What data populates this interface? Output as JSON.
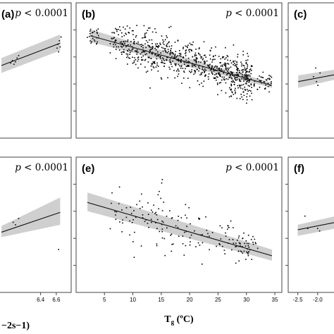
{
  "chart_data": [
    {
      "panel": "(a)",
      "type": "scatter",
      "p_text": "p < 0.0001",
      "x_range": [
        5.9,
        6.7
      ],
      "y_range": [
        0,
        1
      ],
      "points": [
        [
          6.02,
          0.56
        ],
        [
          6.04,
          0.58
        ],
        [
          6.06,
          0.55
        ],
        [
          6.08,
          0.57
        ],
        [
          6.1,
          0.6
        ],
        [
          6.12,
          0.62
        ],
        [
          6.62,
          0.71
        ],
        [
          6.63,
          0.65
        ],
        [
          6.64,
          0.74
        ],
        [
          6.65,
          0.69
        ],
        [
          6.66,
          0.77
        ],
        [
          6.61,
          0.68
        ]
      ],
      "fit": [
        [
          5.9,
          0.54
        ],
        [
          6.65,
          0.72
        ]
      ],
      "band": [
        [
          5.9,
          0.48
        ],
        [
          6.65,
          0.66
        ],
        [
          6.65,
          0.79
        ],
        [
          5.9,
          0.6
        ]
      ]
    },
    {
      "panel": "(b)",
      "type": "scatter",
      "p_text": "p < 0.0001",
      "x_range": [
        1,
        35
      ],
      "y_range": [
        0,
        1
      ],
      "fit": [
        [
          2.5,
          0.78
        ],
        [
          34.5,
          0.38
        ]
      ],
      "band": [
        [
          2.5,
          0.73
        ],
        [
          34.5,
          0.36
        ],
        [
          34.5,
          0.4
        ],
        [
          2.5,
          0.83
        ]
      ],
      "clusters": [
        {
          "x_min": 2,
          "x_max": 4,
          "y_center": 0.78,
          "y_spread": 0.07,
          "n": 25
        },
        {
          "x_min": 6,
          "x_max": 9,
          "y_center": 0.74,
          "y_spread": 0.1,
          "n": 60
        },
        {
          "x_min": 9,
          "x_max": 13,
          "y_center": 0.68,
          "y_spread": 0.14,
          "n": 110
        },
        {
          "x_min": 13,
          "x_max": 17,
          "y_center": 0.63,
          "y_spread": 0.13,
          "n": 130
        },
        {
          "x_min": 17,
          "x_max": 22,
          "y_center": 0.57,
          "y_spread": 0.12,
          "n": 150
        },
        {
          "x_min": 22,
          "x_max": 27,
          "y_center": 0.51,
          "y_spread": 0.12,
          "n": 160
        },
        {
          "x_min": 27,
          "x_max": 31,
          "y_center": 0.44,
          "y_spread": 0.14,
          "n": 200
        },
        {
          "x_min": 31,
          "x_max": 34.5,
          "y_center": 0.41,
          "y_spread": 0.08,
          "n": 40
        }
      ]
    },
    {
      "panel": "(c)",
      "type": "scatter",
      "p_text": "",
      "x_range": [
        0,
        1
      ],
      "y_range": [
        0,
        1
      ],
      "points": [
        [
          0.45,
          0.45
        ],
        [
          0.5,
          0.52
        ],
        [
          0.55,
          0.38
        ],
        [
          0.6,
          0.48
        ],
        [
          0.52,
          0.41
        ]
      ],
      "fit": [
        [
          0.1,
          0.41
        ],
        [
          1,
          0.47
        ]
      ],
      "band": [
        [
          0.1,
          0.36
        ],
        [
          1,
          0.43
        ],
        [
          1,
          0.51
        ],
        [
          0.1,
          0.46
        ]
      ]
    },
    {
      "panel": "",
      "type": "scatter",
      "p_text": "p < 0.0001",
      "x_range": [
        5.9,
        6.7
      ],
      "y_range": [
        0,
        1
      ],
      "xticks": [
        "6.4",
        "6.6"
      ],
      "points": [
        [
          6.05,
          0.52
        ],
        [
          6.08,
          0.5
        ],
        [
          6.12,
          0.55
        ],
        [
          6.63,
          0.3
        ]
      ],
      "fit": [
        [
          5.9,
          0.44
        ],
        [
          6.65,
          0.6
        ]
      ],
      "band": [
        [
          5.9,
          0.4
        ],
        [
          6.65,
          0.5
        ],
        [
          6.65,
          0.72
        ],
        [
          5.9,
          0.49
        ]
      ]
    },
    {
      "panel": "(e)",
      "type": "scatter",
      "p_text": "p < 0.0001",
      "x_range": [
        1,
        35
      ],
      "y_range": [
        0,
        1
      ],
      "xticks": [
        "5",
        "10",
        "15",
        "20",
        "25",
        "30",
        "35"
      ],
      "xlabel": "Tg (ºC)",
      "fit": [
        [
          2,
          0.68
        ],
        [
          34.5,
          0.25
        ]
      ],
      "band": [
        [
          2,
          0.61
        ],
        [
          34.5,
          0.21
        ],
        [
          34.5,
          0.3
        ],
        [
          2,
          0.76
        ]
      ],
      "clusters": [
        {
          "x_min": 6,
          "x_max": 12,
          "y_center": 0.58,
          "y_spread": 0.2,
          "n": 35
        },
        {
          "x_min": 12,
          "x_max": 17,
          "y_center": 0.55,
          "y_spread": 0.22,
          "n": 45
        },
        {
          "x_min": 17,
          "x_max": 23,
          "y_center": 0.45,
          "y_spread": 0.17,
          "n": 35
        },
        {
          "x_min": 23,
          "x_max": 28,
          "y_center": 0.38,
          "y_spread": 0.14,
          "n": 30
        },
        {
          "x_min": 28,
          "x_max": 32,
          "y_center": 0.3,
          "y_spread": 0.1,
          "n": 50
        }
      ]
    },
    {
      "panel": "(f)",
      "type": "scatter",
      "p_text": "",
      "x_range": [
        -2.6,
        -1.5
      ],
      "y_range": [
        0,
        1
      ],
      "xticks": [
        "-2.5",
        "-2.0"
      ],
      "points": [
        [
          -2.32,
          0.57
        ],
        [
          -2.25,
          0.47
        ],
        [
          -2.0,
          0.47
        ],
        [
          -1.95,
          0.45
        ]
      ],
      "fit": [
        [
          -2.5,
          0.46
        ],
        [
          -1.55,
          0.52
        ]
      ],
      "band": [
        [
          -2.5,
          0.41
        ],
        [
          -1.55,
          0.47
        ],
        [
          -1.55,
          0.57
        ],
        [
          -2.5,
          0.5
        ]
      ]
    }
  ],
  "xlabel_partial_left": "−2s−1)"
}
